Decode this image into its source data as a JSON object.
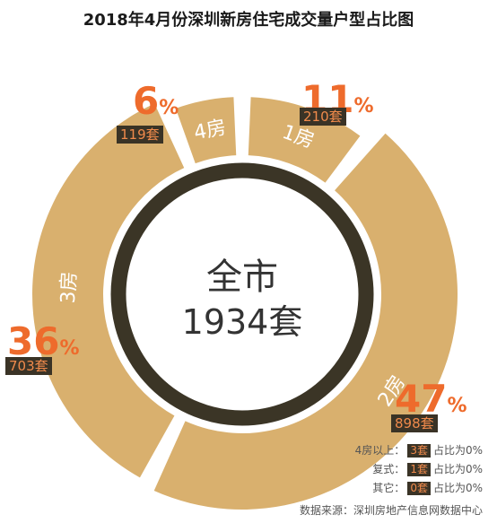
{
  "title": "2018年4月份深圳新房住宅成交量户型占比图",
  "chart_data": {
    "type": "pie",
    "title": "2018年4月份深圳新房住宅成交量户型占比图",
    "center_label": [
      "全市",
      "1934套"
    ],
    "categories": [
      "1房",
      "2房",
      "3房",
      "4房"
    ],
    "values": [
      210,
      898,
      703,
      119
    ],
    "percent_labels": [
      "11",
      "47",
      "36",
      "6"
    ],
    "percent_symbol": "%",
    "count_labels": [
      "210套",
      "898套",
      "703套",
      "119套"
    ],
    "colors": {
      "ring": "#d9b06e",
      "inner_ring": "#3b3526",
      "accent": "#ee6b2c"
    }
  },
  "legend": [
    {
      "label": "4房以上：",
      "value": "3套",
      "share": "占比为0%"
    },
    {
      "label": "复式：",
      "value": "1套",
      "share": "占比为0%"
    },
    {
      "label": "其它：",
      "value": "0套",
      "share": "占比为0%"
    }
  ],
  "source": "数据来源：深圳房地产信息网数据中心"
}
